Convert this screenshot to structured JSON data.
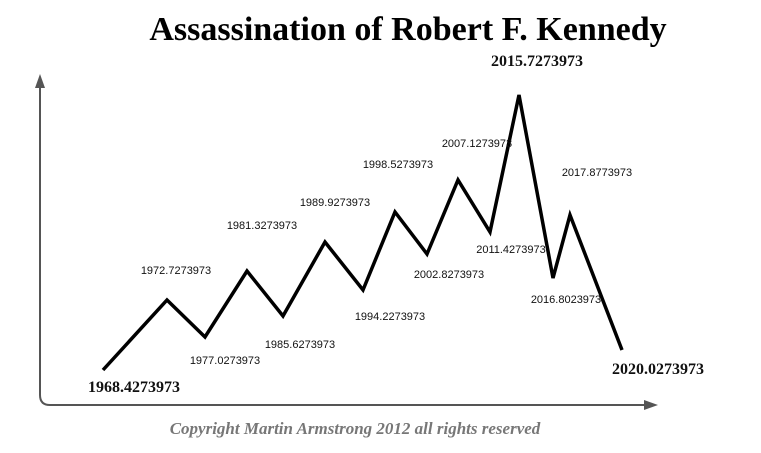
{
  "title": "Assassination of Robert F. Kennedy",
  "points": [
    {
      "label": "1968.4273973"
    },
    {
      "label": "1972.7273973"
    },
    {
      "label": "1977.0273973"
    },
    {
      "label": "1981.3273973"
    },
    {
      "label": "1985.6273973"
    },
    {
      "label": "1989.9273973"
    },
    {
      "label": "1994.2273973"
    },
    {
      "label": "1998.5273973"
    },
    {
      "label": "2002.8273973"
    },
    {
      "label": "2007.1273973"
    },
    {
      "label": "2011.4273973"
    },
    {
      "label": "2015.7273973"
    },
    {
      "label": "2016.8023973"
    },
    {
      "label": "2017.8773973"
    },
    {
      "label": "2020.0273973"
    }
  ],
  "copyright": "Copyright Martin Armstrong 2012 all rights reserved"
}
